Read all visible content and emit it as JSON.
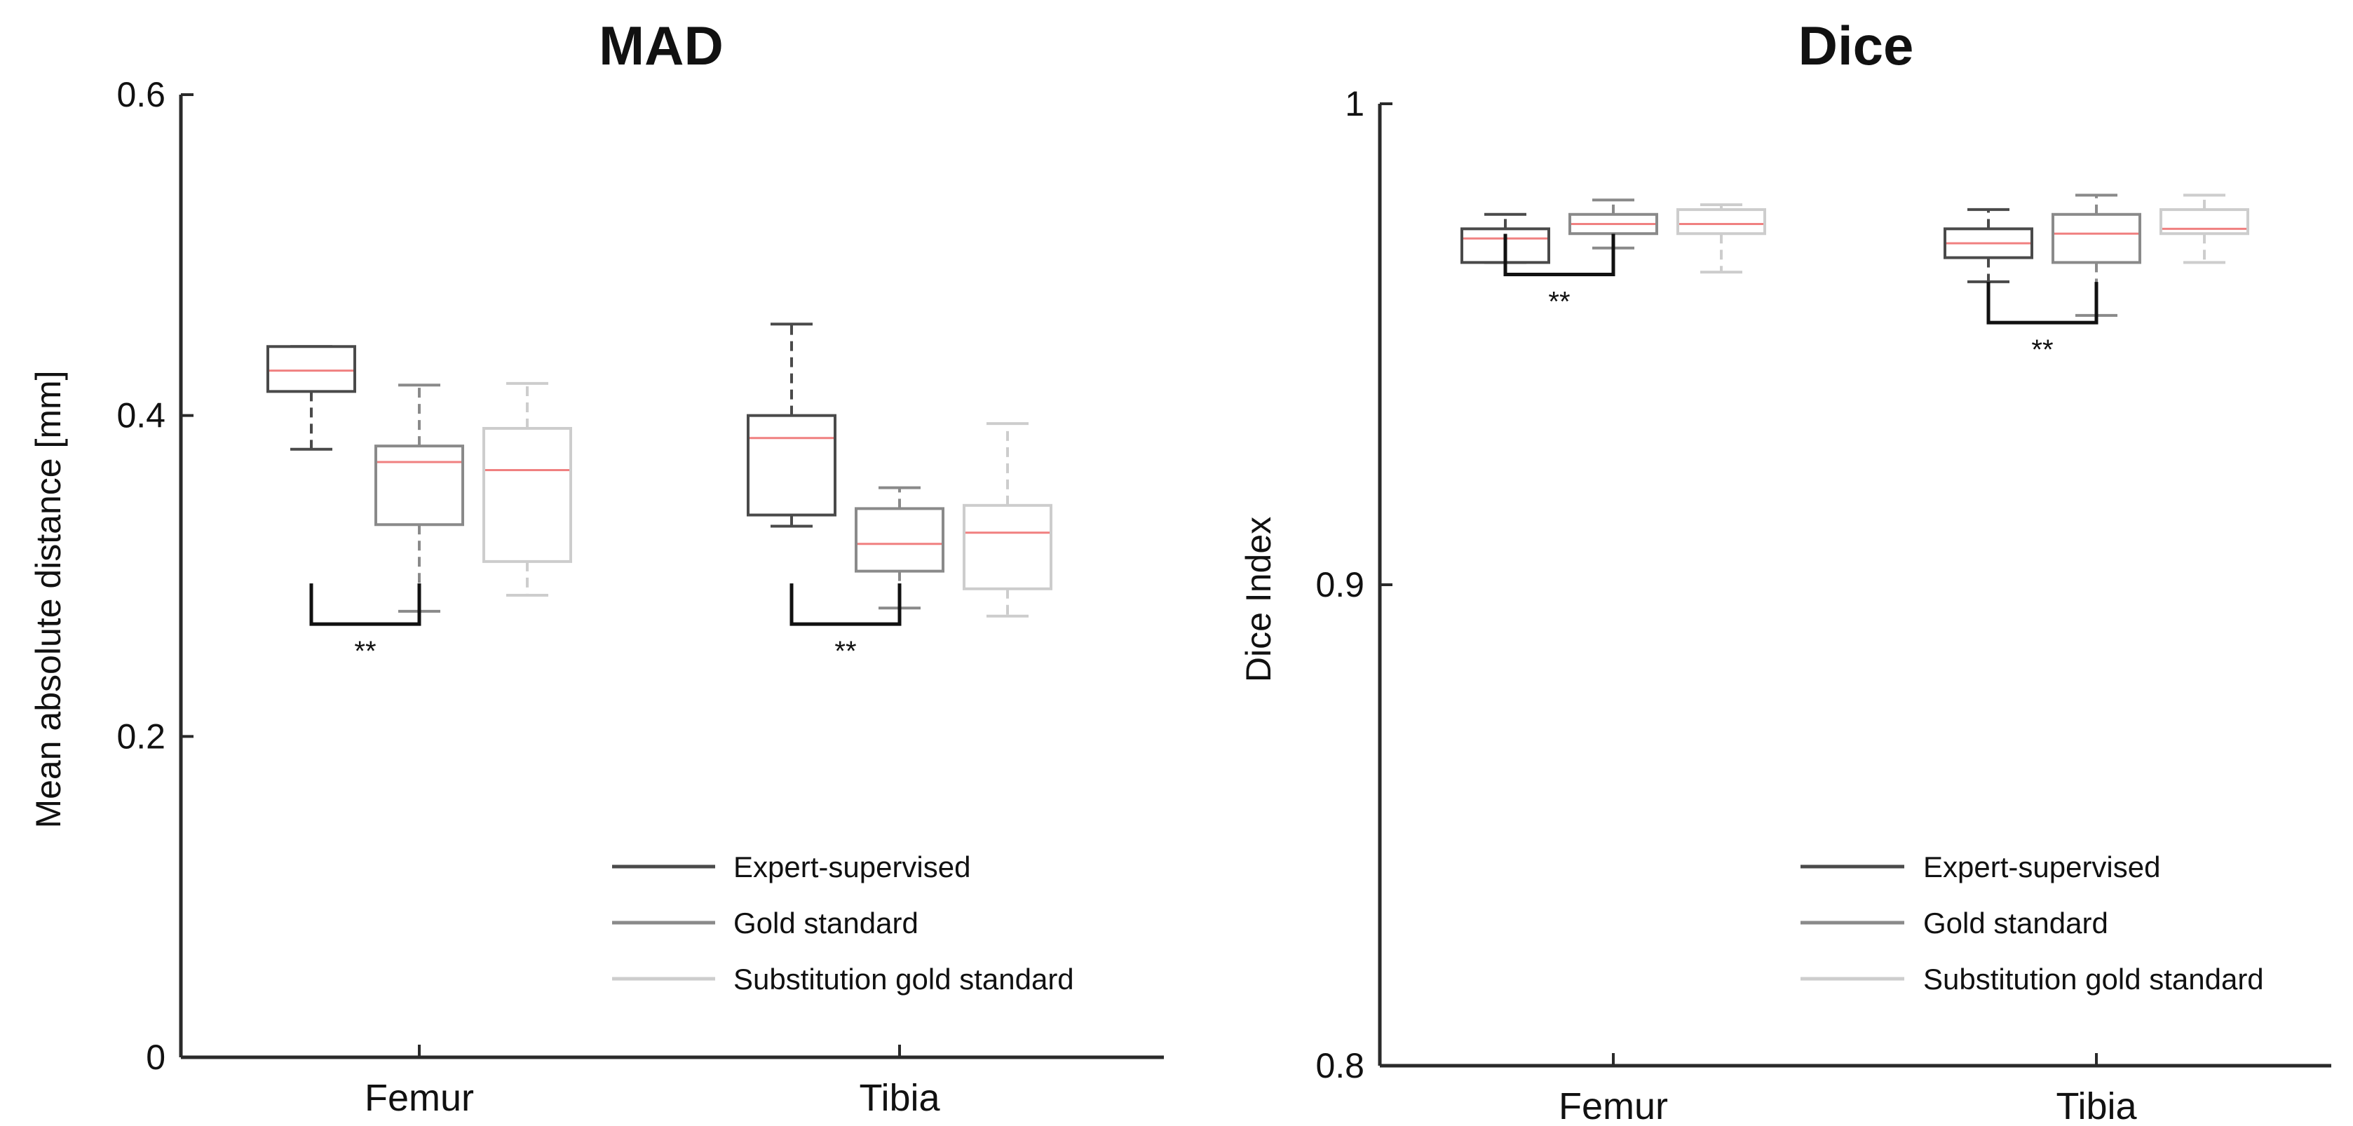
{
  "chart_data": [
    {
      "type": "box",
      "title": "MAD",
      "xlabel": "",
      "ylabel": "Mean absolute distance [mm]",
      "ylim": [
        0,
        0.6
      ],
      "yticks": [
        0,
        0.2,
        0.4,
        0.6
      ],
      "ytick_labels": [
        "0",
        "0.2",
        "0.4",
        "0.6"
      ],
      "categories": [
        "Femur",
        "Tibia"
      ],
      "series": [
        {
          "name": "Expert-supervised",
          "color": "#4a4a4a",
          "boxes": [
            {
              "min": 0.379,
              "q1": 0.415,
              "median": 0.428,
              "q3": 0.443,
              "max": 0.443
            },
            {
              "min": 0.331,
              "q1": 0.338,
              "median": 0.386,
              "q3": 0.4,
              "max": 0.457
            }
          ]
        },
        {
          "name": "Gold standard",
          "color": "#8a8a8a",
          "boxes": [
            {
              "min": 0.278,
              "q1": 0.332,
              "median": 0.371,
              "q3": 0.381,
              "max": 0.419
            },
            {
              "min": 0.28,
              "q1": 0.303,
              "median": 0.32,
              "q3": 0.342,
              "max": 0.355
            }
          ]
        },
        {
          "name": "Substitution gold standard",
          "color": "#cdcdcd",
          "boxes": [
            {
              "min": 0.288,
              "q1": 0.309,
              "median": 0.366,
              "q3": 0.392,
              "max": 0.42
            },
            {
              "min": 0.275,
              "q1": 0.292,
              "median": 0.327,
              "q3": 0.344,
              "max": 0.395
            }
          ]
        }
      ],
      "median_color": "#f08080",
      "significance": [
        {
          "category": "Femur",
          "between": [
            "Expert-supervised",
            "Gold standard"
          ],
          "label": "**",
          "level": 0.27
        },
        {
          "category": "Tibia",
          "between": [
            "Expert-supervised",
            "Gold standard"
          ],
          "label": "**",
          "level": 0.27
        }
      ],
      "legend": {
        "placement": "bottom-right",
        "entries": [
          "Expert-supervised",
          "Gold standard",
          "Substitution gold standard"
        ]
      }
    },
    {
      "type": "box",
      "title": "Dice",
      "xlabel": "",
      "ylabel": "Dice Index",
      "ylim": [
        0.8,
        1.0
      ],
      "yticks": [
        0.8,
        0.9,
        1.0
      ],
      "ytick_labels": [
        "0.8",
        "0.9",
        "1"
      ],
      "categories": [
        "Femur",
        "Tibia"
      ],
      "series": [
        {
          "name": "Expert-supervised",
          "color": "#4a4a4a",
          "boxes": [
            {
              "min": 0.967,
              "q1": 0.967,
              "median": 0.972,
              "q3": 0.974,
              "max": 0.977
            },
            {
              "min": 0.963,
              "q1": 0.968,
              "median": 0.971,
              "q3": 0.974,
              "max": 0.978
            }
          ]
        },
        {
          "name": "Gold standard",
          "color": "#8a8a8a",
          "boxes": [
            {
              "min": 0.97,
              "q1": 0.973,
              "median": 0.975,
              "q3": 0.977,
              "max": 0.98
            },
            {
              "min": 0.956,
              "q1": 0.967,
              "median": 0.973,
              "q3": 0.977,
              "max": 0.981
            }
          ]
        },
        {
          "name": "Substitution gold standard",
          "color": "#cdcdcd",
          "boxes": [
            {
              "min": 0.965,
              "q1": 0.973,
              "median": 0.975,
              "q3": 0.978,
              "max": 0.979
            },
            {
              "min": 0.967,
              "q1": 0.973,
              "median": 0.974,
              "q3": 0.978,
              "max": 0.981
            }
          ]
        }
      ],
      "median_color": "#f08080",
      "significance": [
        {
          "category": "Femur",
          "between": [
            "Expert-supervised",
            "Gold standard"
          ],
          "label": "**",
          "level": 0.9645
        },
        {
          "category": "Tibia",
          "between": [
            "Expert-supervised",
            "Gold standard"
          ],
          "label": "**",
          "level": 0.9545
        }
      ],
      "legend": {
        "placement": "bottom-right",
        "entries": [
          "Expert-supervised",
          "Gold standard",
          "Substitution gold standard"
        ]
      }
    }
  ]
}
